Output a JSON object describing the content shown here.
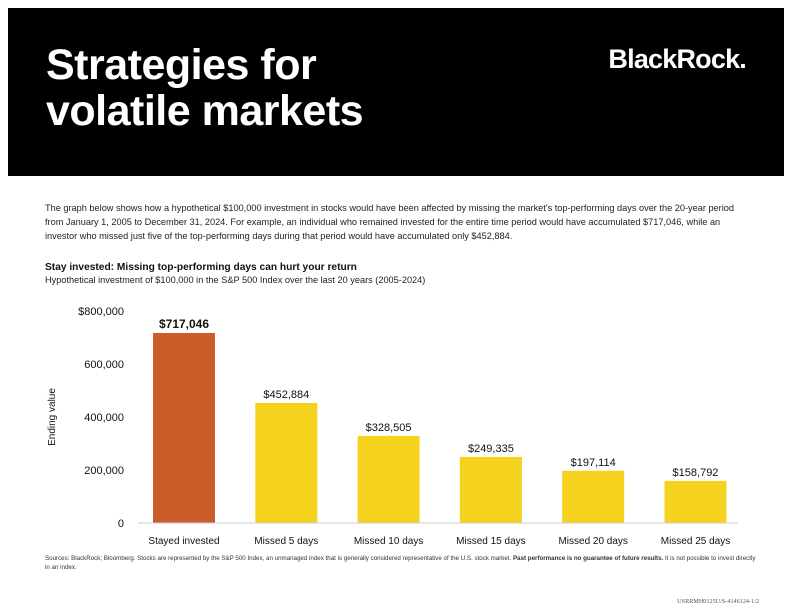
{
  "header": {
    "title_line1": "Strategies for",
    "title_line2": "volatile markets",
    "brand": "BlackRock."
  },
  "intro": "The graph below shows how a hypothetical $100,000 investment in stocks would have been affected by missing the market's top-performing days over the 20-year period from January 1, 2005 to December 31, 2024. For example, an individual who remained invested for the entire time period would have accumulated $717,046, while an investor who missed just five of the top-performing days during that period would have accumulated only $452,884.",
  "colors": {
    "highlight": "#cd5c2b",
    "bars": "#f5d21d",
    "header_bg": "#000000"
  },
  "chart_data": {
    "type": "bar",
    "title": "Stay invested: Missing top-performing days can hurt your return",
    "subtitle": "Hypothetical investment of $100,000 in the S&P 500 Index over the last 20 years (2005-2024)",
    "xlabel": "",
    "ylabel": "Ending value",
    "ylim": [
      0,
      800000
    ],
    "yticks": [
      0,
      200000,
      400000,
      600000,
      800000
    ],
    "ytick_labels": [
      "0",
      "200,000",
      "400,000",
      "600,000",
      "$800,000"
    ],
    "categories": [
      "Stayed invested",
      "Missed 5 days",
      "Missed 10 days",
      "Missed 15 days",
      "Missed 20 days",
      "Missed 25 days"
    ],
    "values": [
      717046,
      452884,
      328505,
      249335,
      197114,
      158792
    ],
    "value_labels": [
      "$717,046",
      "$452,884",
      "$328,505",
      "$249,335",
      "$197,114",
      "$158,792"
    ],
    "highlight_index": 0,
    "grid": false
  },
  "footnote": {
    "text": "Sources: BlackRock; Bloomberg. Stocks are represented by the S&P 500 Index, an unmanaged index that is generally considered representative of the U.S. stock market.",
    "bold": "Past performance is no guarantee of future results.",
    "text2": "It is not possible to invest directly in an index."
  },
  "document_code": "USRRMH0125U/S-4146124-1/2"
}
